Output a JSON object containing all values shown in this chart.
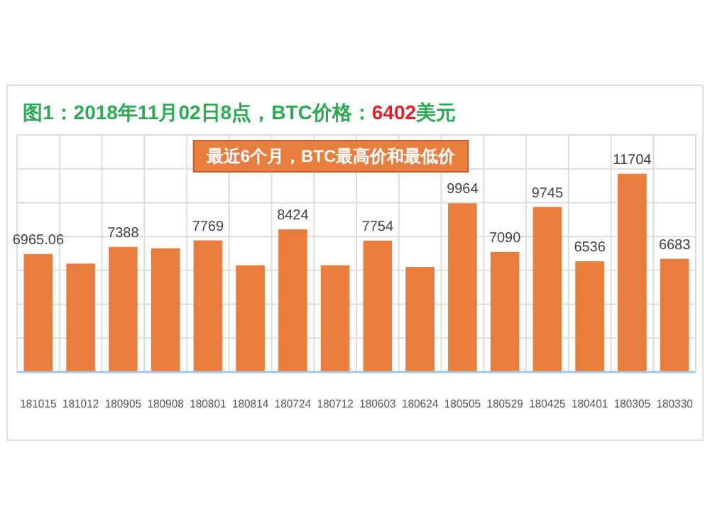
{
  "chart_data": {
    "type": "bar",
    "title": "图1：2018年11月02日8点，BTC价格：6402美元",
    "categories": [
      "181015",
      "181012",
      "180905",
      "180908",
      "180801",
      "180814",
      "180724",
      "180712",
      "180603",
      "180624",
      "180505",
      "180529",
      "180425",
      "180401",
      "180305",
      "180330"
    ],
    "values": [
      6965.06,
      6400,
      7388,
      7300,
      7769,
      6300,
      8424,
      6300,
      7754,
      6200,
      9964,
      7090,
      9745,
      6536,
      11704,
      6683
    ],
    "value_labels": [
      "6965.06",
      null,
      "7388",
      null,
      "7769",
      null,
      "8424",
      null,
      "7754",
      null,
      "9964",
      "7090",
      "9745",
      "6536",
      "11704",
      "6683"
    ],
    "color": "#e87d3e",
    "ylim": [
      0,
      14000
    ],
    "yticks": [
      {
        "value": 0,
        "label": null
      },
      {
        "value": 2000,
        "label": null
      },
      {
        "value": 4000,
        "label": null
      },
      {
        "value": 6000,
        "label": null
      },
      {
        "value": 8000,
        "label": null
      },
      {
        "value": 10000,
        "label": null
      },
      {
        "value": 12000,
        "label": null
      },
      {
        "value": 14000,
        "label": null
      }
    ],
    "tick_labels": "x",
    "grid": true,
    "annotations": [
      "最近6个月，BTC最高价和最低价"
    ]
  }
}
